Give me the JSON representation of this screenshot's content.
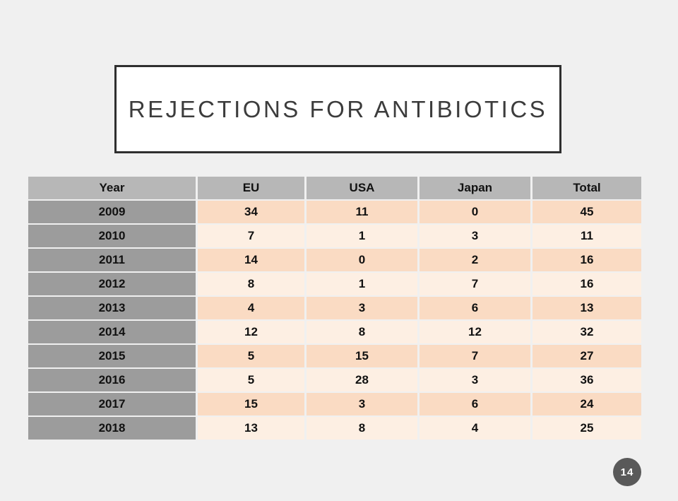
{
  "slide": {
    "title": "REJECTIONS FOR ANTIBIOTICS",
    "background_color": "#f0f0f0"
  },
  "title_box": {
    "bg": "#ffffff",
    "border_color": "#2f2f2f",
    "text_color": "#3c3c3c"
  },
  "table": {
    "columns": [
      "Year",
      "EU",
      "USA",
      "Japan",
      "Total"
    ],
    "rows": [
      [
        "2009",
        "34",
        "11",
        "0",
        "45"
      ],
      [
        "2010",
        "7",
        "1",
        "3",
        "11"
      ],
      [
        "2011",
        "14",
        "0",
        "2",
        "16"
      ],
      [
        "2012",
        "8",
        "1",
        "7",
        "16"
      ],
      [
        "2013",
        "4",
        "3",
        "6",
        "13"
      ],
      [
        "2014",
        "12",
        "8",
        "12",
        "32"
      ],
      [
        "2015",
        "5",
        "15",
        "7",
        "27"
      ],
      [
        "2016",
        "5",
        "28",
        "3",
        "36"
      ],
      [
        "2017",
        "15",
        "3",
        "6",
        "24"
      ],
      [
        "2018",
        "13",
        "8",
        "4",
        "25"
      ]
    ],
    "colors": {
      "header_bg": "#b7b7b7",
      "year_col_bg": "#9c9c9c",
      "row_dark_bg": "#fadbc3",
      "row_light_bg": "#fdefe3",
      "text": "#111111"
    }
  },
  "badge": {
    "label": "14",
    "bg": "#595959",
    "text_color": "#ffffff"
  },
  "chart_data": {
    "type": "table",
    "title": "REJECTIONS FOR ANTIBIOTICS",
    "columns": [
      "Year",
      "EU",
      "USA",
      "Japan",
      "Total"
    ],
    "rows": [
      [
        2009,
        34,
        11,
        0,
        45
      ],
      [
        2010,
        7,
        1,
        3,
        11
      ],
      [
        2011,
        14,
        0,
        2,
        16
      ],
      [
        2012,
        8,
        1,
        7,
        16
      ],
      [
        2013,
        4,
        3,
        6,
        13
      ],
      [
        2014,
        12,
        8,
        12,
        32
      ],
      [
        2015,
        5,
        15,
        7,
        27
      ],
      [
        2016,
        5,
        28,
        3,
        36
      ],
      [
        2017,
        15,
        3,
        6,
        24
      ],
      [
        2018,
        13,
        8,
        4,
        25
      ]
    ]
  }
}
